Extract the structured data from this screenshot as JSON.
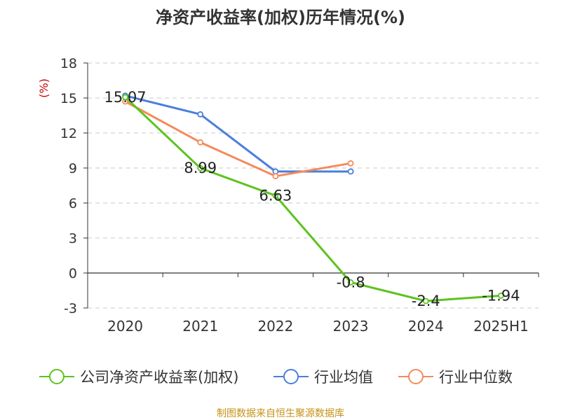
{
  "chart_data": {
    "type": "line",
    "title": "净资产收益率(加权)历年情况(%)",
    "ylabel": "(%)",
    "xlabel": "",
    "categories": [
      "2020",
      "2021",
      "2022",
      "2023",
      "2024",
      "2025H1"
    ],
    "ylim": [
      -3,
      18
    ],
    "yticks": [
      -3,
      0,
      3,
      6,
      9,
      12,
      15,
      18
    ],
    "grid": true,
    "legend_position": "bottom",
    "series": [
      {
        "name": "公司净资产收益率(加权)",
        "color": "#5cc31f",
        "values": [
          15.07,
          8.99,
          6.63,
          -0.8,
          -2.4,
          -1.94
        ],
        "labels": [
          "15.07",
          "8.99",
          "6.63",
          "-0.8",
          "-2.4",
          "-1.94"
        ]
      },
      {
        "name": "行业均值",
        "color": "#4a7fdc",
        "values": [
          15.2,
          13.6,
          8.7,
          8.7,
          null,
          null
        ]
      },
      {
        "name": "行业中位数",
        "color": "#f48b5a",
        "values": [
          14.7,
          11.2,
          8.3,
          9.4,
          null,
          null
        ]
      }
    ],
    "source": "制图数据来自恒生聚源数据库"
  }
}
